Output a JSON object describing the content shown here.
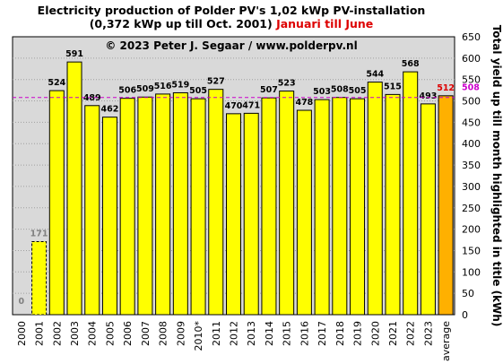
{
  "chart_data": {
    "type": "bar",
    "title_line1": "Electricity production  of Polder  PV's  1,02 kWp PV-installation",
    "title_line2": "(0,372 kWp up till Oct. 2001)",
    "title_highlight": "Januari till June",
    "copyright": "© 2023 Peter J. Segaar / www.polderpv.nl",
    "ylabel": "Total yield up till month highlighted in title (kWh)",
    "ylim": [
      0,
      650
    ],
    "yticks": [
      0,
      50,
      100,
      150,
      200,
      250,
      300,
      350,
      400,
      450,
      500,
      550,
      600,
      650
    ],
    "grid": true,
    "categories": [
      "2000",
      "2001",
      "2002",
      "2003",
      "2004",
      "2005",
      "2006",
      "2007",
      "2008",
      "2009",
      "2010*",
      "2011",
      "2012",
      "2013",
      "2014",
      "2015",
      "2016",
      "2017",
      "2018",
      "2019",
      "2020",
      "2021",
      "2022",
      "2023",
      "average"
    ],
    "values": [
      0,
      171,
      524,
      591,
      489,
      462,
      506,
      509,
      516,
      519,
      505,
      527,
      470,
      471,
      507,
      523,
      478,
      503,
      508,
      505,
      544,
      515,
      568,
      493,
      512
    ],
    "value_labels": [
      "0",
      "171",
      "524",
      "591",
      "489",
      "462",
      "506",
      "509",
      "516",
      "519",
      "505",
      "527",
      "470",
      "471",
      "507",
      "523",
      "478",
      "503",
      "508",
      "505",
      "544",
      "515",
      "568",
      "493",
      "512"
    ],
    "reference_line": {
      "value": 508,
      "label": "508",
      "color": "#cc00cc"
    },
    "colors": {
      "bar": "#ffff00",
      "average_bar": "#ffb000",
      "plot_bg": "#d9d9d9",
      "title_highlight": "#dd0000",
      "average_label": "#dd0000",
      "faded_label": "#808080"
    }
  }
}
